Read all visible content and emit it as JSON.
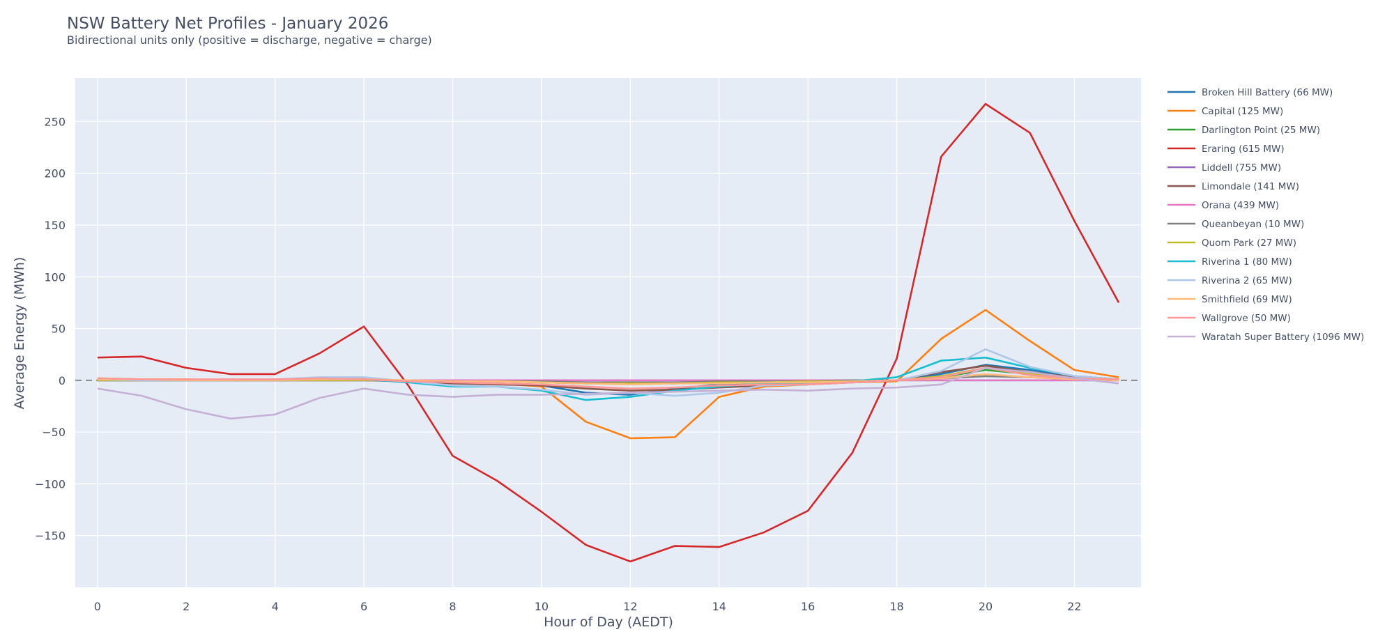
{
  "chart_data": {
    "type": "line",
    "title": "NSW Battery Net Profiles - January 2026",
    "subtitle": "Bidirectional units only (positive = discharge, negative = charge)",
    "xlabel": "Hour of Day (AEDT)",
    "ylabel": "Average Energy (MWh)",
    "xlim": [
      -0.5,
      23.5
    ],
    "ylim": [
      -200,
      292
    ],
    "x_ticks": [
      0,
      2,
      4,
      6,
      8,
      10,
      12,
      14,
      16,
      18,
      20,
      22
    ],
    "y_ticks": [
      -150,
      -100,
      -50,
      0,
      50,
      100,
      150,
      200,
      250
    ],
    "x_tick_labels": [
      "0",
      "2",
      "4",
      "6",
      "8",
      "10",
      "12",
      "14",
      "16",
      "18",
      "20",
      "22"
    ],
    "y_tick_labels": [
      "−150",
      "−100",
      "−50",
      "0",
      "50",
      "100",
      "150",
      "200",
      "250"
    ],
    "grid": true,
    "zero_line": "dashed",
    "legend_position": "right",
    "x": [
      0,
      1,
      2,
      3,
      4,
      5,
      6,
      7,
      8,
      9,
      10,
      11,
      12,
      13,
      14,
      15,
      16,
      17,
      18,
      19,
      20,
      21,
      22,
      23
    ],
    "series": [
      {
        "name": "Broken Hill Battery (66 MW)",
        "color": "#1f77b4",
        "values": [
          1,
          1,
          0,
          0,
          0,
          1,
          1,
          -1,
          -2,
          -3,
          -5,
          -12,
          -14,
          -8,
          -4,
          -3,
          -2,
          -1,
          0,
          6,
          15,
          10,
          4,
          1
        ]
      },
      {
        "name": "Capital (125 MW)",
        "color": "#ff7f0e",
        "values": [
          2,
          1,
          1,
          0,
          0,
          2,
          2,
          -1,
          -3,
          -3,
          -6,
          -40,
          -56,
          -55,
          -16,
          -6,
          -4,
          -2,
          -1,
          40,
          68,
          38,
          10,
          3
        ]
      },
      {
        "name": "Darlington Point (25 MW)",
        "color": "#2ca02c",
        "values": [
          0,
          0,
          0,
          0,
          0,
          0,
          0,
          0,
          0,
          -1,
          -2,
          -3,
          -3,
          -3,
          -2,
          -1,
          -1,
          -1,
          0,
          3,
          10,
          6,
          2,
          0
        ]
      },
      {
        "name": "Eraring (615 MW)",
        "color": "#d62728",
        "values": [
          22,
          23,
          12,
          6,
          6,
          26,
          52,
          -5,
          -73,
          -97,
          -127,
          -159,
          -175,
          -160,
          -161,
          -147,
          -126,
          -70,
          21,
          216,
          267,
          239,
          154,
          75
        ]
      },
      {
        "name": "Liddell (755 MW)",
        "color": "#9467bd",
        "values": [
          0,
          0,
          0,
          0,
          0,
          0,
          0,
          0,
          0,
          0,
          0,
          0,
          0,
          0,
          0,
          0,
          0,
          0,
          0,
          0,
          0,
          0,
          0,
          0
        ]
      },
      {
        "name": "Limondale (141 MW)",
        "color": "#8c564b",
        "values": [
          0,
          0,
          0,
          0,
          0,
          0,
          0,
          -1,
          -3,
          -4,
          -5,
          -8,
          -10,
          -9,
          -7,
          -5,
          -4,
          -2,
          0,
          8,
          14,
          8,
          3,
          1
        ]
      },
      {
        "name": "Orana (439 MW)",
        "color": "#e377c2",
        "values": [
          0,
          0,
          0,
          0,
          0,
          0,
          0,
          0,
          0,
          0,
          0,
          0,
          0,
          0,
          0,
          0,
          0,
          0,
          0,
          0,
          0,
          0,
          0,
          0
        ]
      },
      {
        "name": "Queanbeyan (10 MW)",
        "color": "#7f7f7f",
        "values": [
          0,
          0,
          0,
          0,
          0,
          0,
          0,
          0,
          -1,
          -1,
          -1,
          -2,
          -2,
          -2,
          -1,
          -1,
          -1,
          0,
          0,
          2,
          4,
          3,
          1,
          0
        ]
      },
      {
        "name": "Quorn Park (27 MW)",
        "color": "#bcbd22",
        "values": [
          0,
          0,
          0,
          0,
          0,
          0,
          0,
          0,
          -1,
          -1,
          -2,
          -3,
          -3,
          -3,
          -2,
          -2,
          -1,
          -1,
          0,
          4,
          12,
          6,
          2,
          0
        ]
      },
      {
        "name": "Riverina 1 (80 MW)",
        "color": "#17becf",
        "values": [
          1,
          0,
          0,
          0,
          0,
          1,
          1,
          -2,
          -6,
          -6,
          -10,
          -19,
          -16,
          -10,
          -6,
          -3,
          -2,
          -1,
          3,
          19,
          22,
          12,
          4,
          1
        ]
      },
      {
        "name": "Riverina 2 (65 MW)",
        "color": "#aec7e8",
        "values": [
          1,
          0,
          0,
          0,
          1,
          3,
          3,
          -1,
          -5,
          -6,
          -9,
          -14,
          -12,
          -15,
          -12,
          -5,
          -4,
          -2,
          0,
          9,
          30,
          13,
          4,
          1
        ]
      },
      {
        "name": "Smithfield (69 MW)",
        "color": "#ffbb78",
        "values": [
          1,
          1,
          0,
          0,
          0,
          1,
          1,
          0,
          -1,
          -1,
          -2,
          -3,
          -4,
          -3,
          -3,
          -2,
          -2,
          -1,
          0,
          2,
          6,
          3,
          1,
          0
        ]
      },
      {
        "name": "Wallgrove (50 MW)",
        "color": "#ff9896",
        "values": [
          2,
          1,
          1,
          1,
          1,
          2,
          1,
          -1,
          -2,
          -3,
          -4,
          -6,
          -8,
          -7,
          -5,
          -4,
          -4,
          -2,
          0,
          3,
          12,
          5,
          2,
          1
        ]
      },
      {
        "name": "Waratah Super Battery (1096 MW)",
        "color": "#c5b0d5",
        "values": [
          -8,
          -15,
          -28,
          -37,
          -33,
          -17,
          -8,
          -14,
          -16,
          -14,
          -14,
          -13,
          -12,
          -11,
          -10,
          -9,
          -10,
          -8,
          -7,
          -4,
          12,
          8,
          2,
          -3
        ]
      }
    ]
  }
}
